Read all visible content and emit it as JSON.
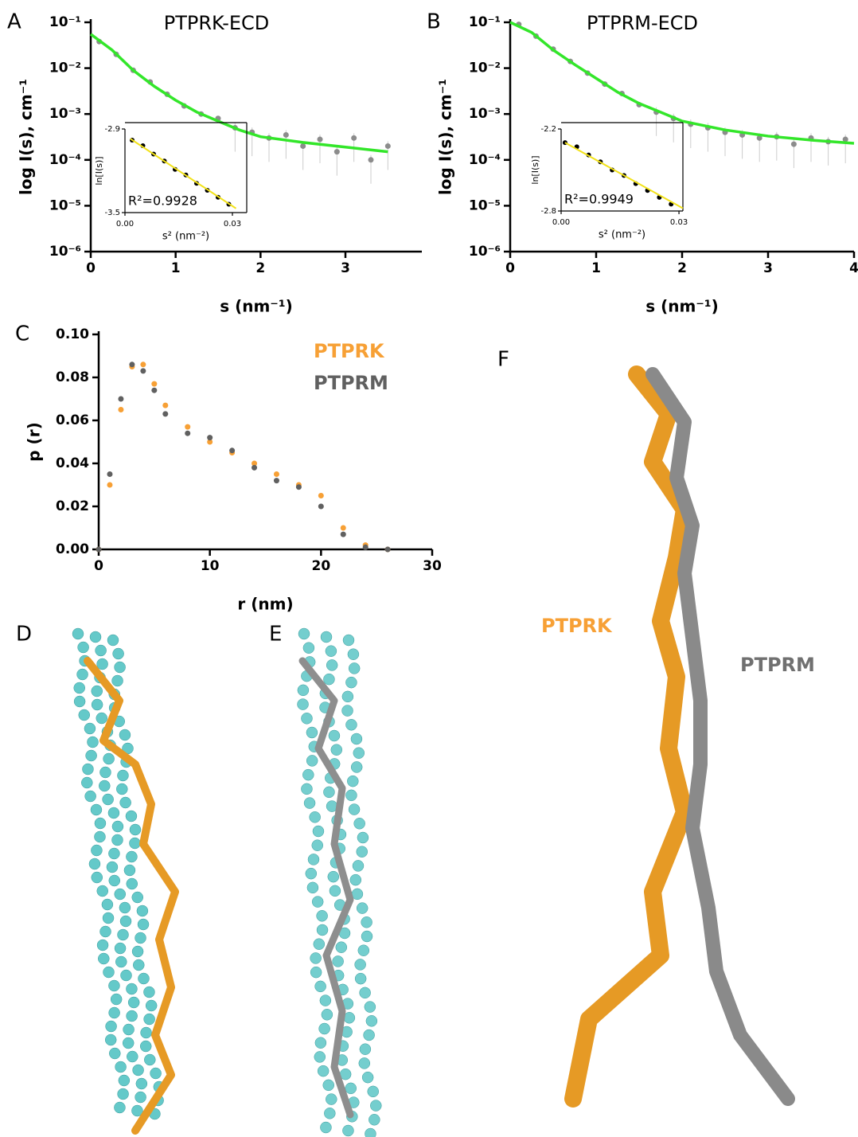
{
  "chart_data": [
    {
      "type": "line",
      "panel": "A",
      "title": "PTPRK-ECD",
      "xlabel": "s (nm⁻¹)",
      "ylabel": "log I(s), cm⁻¹",
      "log_y": true,
      "xlim": [
        0,
        3.9
      ],
      "xticks": [
        0,
        1,
        2,
        3
      ],
      "ylim": [
        1e-06,
        0.1
      ],
      "yticks": [
        {
          "value": 0.1,
          "label": "10⁻¹"
        },
        {
          "value": 0.01,
          "label": "10⁻²"
        },
        {
          "value": 0.001,
          "label": "10⁻³"
        },
        {
          "value": 0.0001,
          "label": "10⁻⁴"
        },
        {
          "value": 1e-05,
          "label": "10⁻⁵"
        },
        {
          "value": 1e-06,
          "label": "10⁻⁶"
        }
      ],
      "series": [
        {
          "mode": "markers",
          "color": "#8c8c8c",
          "x": [
            0.1,
            0.3,
            0.5,
            0.7,
            0.9,
            1.1,
            1.3,
            1.5,
            1.7,
            1.9,
            2.1,
            2.3,
            2.5,
            2.7,
            2.9,
            3.1,
            3.3,
            3.5
          ],
          "values": [
            0.038,
            0.02,
            0.009,
            0.005,
            0.0027,
            0.0015,
            0.001,
            0.0008,
            0.0005,
            0.0004,
            0.0003,
            0.00035,
            0.0002,
            0.00028,
            0.00015,
            0.0003,
            0.0001,
            0.0002
          ]
        },
        {
          "mode": "line",
          "color": "#33e62a",
          "x": [
            0,
            0.25,
            0.5,
            0.75,
            1,
            1.25,
            1.5,
            1.75,
            2,
            2.5,
            3,
            3.5
          ],
          "values": [
            0.055,
            0.025,
            0.009,
            0.004,
            0.002,
            0.0011,
            0.0007,
            0.00045,
            0.00032,
            0.00024,
            0.00019,
            0.00015
          ]
        }
      ],
      "inset": {
        "type": "line",
        "xlabel": "s² (nm⁻²)",
        "ylabel": "ln[I(s)]",
        "annotation": "R²=0.9928",
        "xlim": [
          0,
          0.034
        ],
        "xticks": [
          {
            "value": 0,
            "label": "0.00"
          },
          {
            "value": 0.03,
            "label": "0.03"
          }
        ],
        "ylim": [
          -3.5,
          -2.9
        ],
        "yticks": [
          -2.9,
          -3.5
        ],
        "series": [
          {
            "mode": "markers",
            "color": "#000000",
            "x": [
              0.002,
              0.005,
              0.008,
              0.011,
              0.014,
              0.017,
              0.02,
              0.023,
              0.026,
              0.029
            ],
            "values": [
              -2.98,
              -3.02,
              -3.08,
              -3.13,
              -3.19,
              -3.23,
              -3.29,
              -3.34,
              -3.39,
              -3.44
            ]
          },
          {
            "mode": "line",
            "color": "#f2e21a",
            "x": [
              0.0015,
              0.031
            ],
            "values": [
              -2.97,
              -3.47
            ]
          }
        ]
      }
    },
    {
      "type": "line",
      "panel": "B",
      "title": "PTPRM-ECD",
      "xlabel": "s (nm⁻¹)",
      "ylabel": "log I(s), cm⁻¹",
      "log_y": true,
      "xlim": [
        0,
        4
      ],
      "xticks": [
        0,
        1,
        2,
        3,
        4
      ],
      "ylim": [
        1e-06,
        0.1
      ],
      "yticks": [
        {
          "value": 0.1,
          "label": "10⁻¹"
        },
        {
          "value": 0.01,
          "label": "10⁻²"
        },
        {
          "value": 0.001,
          "label": "10⁻³"
        },
        {
          "value": 0.0001,
          "label": "10⁻⁴"
        },
        {
          "value": 1e-05,
          "label": "10⁻⁵"
        },
        {
          "value": 1e-06,
          "label": "10⁻⁶"
        }
      ],
      "series": [
        {
          "mode": "markers",
          "color": "#8c8c8c",
          "x": [
            0.1,
            0.3,
            0.5,
            0.7,
            0.9,
            1.1,
            1.3,
            1.5,
            1.7,
            1.9,
            2.1,
            2.3,
            2.5,
            2.7,
            2.9,
            3.1,
            3.3,
            3.5,
            3.7,
            3.9
          ],
          "values": [
            0.09,
            0.05,
            0.026,
            0.014,
            0.0078,
            0.0045,
            0.0028,
            0.0016,
            0.0011,
            0.0008,
            0.0006,
            0.0005,
            0.0004,
            0.00035,
            0.0003,
            0.00032,
            0.00022,
            0.0003,
            0.00025,
            0.00028
          ]
        },
        {
          "mode": "line",
          "color": "#33e62a",
          "x": [
            0,
            0.25,
            0.5,
            0.75,
            1,
            1.25,
            1.5,
            1.75,
            2,
            2.5,
            3,
            3.5,
            4
          ],
          "values": [
            0.1,
            0.06,
            0.025,
            0.012,
            0.006,
            0.003,
            0.0017,
            0.0011,
            0.0007,
            0.00045,
            0.00033,
            0.00027,
            0.00023
          ]
        }
      ],
      "inset": {
        "type": "line",
        "xlabel": "s² (nm⁻²)",
        "ylabel": "ln[I(s)]",
        "annotation": "R²=0.9949",
        "xlim": [
          0,
          0.031
        ],
        "xticks": [
          {
            "value": 0,
            "label": "0.00"
          },
          {
            "value": 0.03,
            "label": "0.03"
          }
        ],
        "ylim": [
          -2.8,
          -2.2
        ],
        "yticks": [
          -2.2,
          -2.8
        ],
        "series": [
          {
            "mode": "markers",
            "color": "#000000",
            "x": [
              0.001,
              0.004,
              0.007,
              0.01,
              0.013,
              0.016,
              0.019,
              0.022,
              0.025,
              0.028
            ],
            "values": [
              -2.3,
              -2.33,
              -2.39,
              -2.44,
              -2.5,
              -2.54,
              -2.6,
              -2.65,
              -2.7,
              -2.75
            ]
          },
          {
            "mode": "line",
            "color": "#f2e21a",
            "x": [
              0.001,
              0.031
            ],
            "values": [
              -2.3,
              -2.78
            ]
          }
        ]
      }
    },
    {
      "type": "scatter",
      "panel": "C",
      "xlabel": "r (nm)",
      "ylabel": "p (r)",
      "legend": "upper right",
      "xlim": [
        0,
        30
      ],
      "xticks": [
        0,
        10,
        20,
        30
      ],
      "ylim": [
        0,
        0.1
      ],
      "yticks": [
        {
          "value": 0,
          "label": "0.00"
        },
        {
          "value": 0.02,
          "label": "0.02"
        },
        {
          "value": 0.04,
          "label": "0.04"
        },
        {
          "value": 0.06,
          "label": "0.06"
        },
        {
          "value": 0.08,
          "label": "0.08"
        },
        {
          "value": 0.1,
          "label": "0.10"
        }
      ],
      "series": [
        {
          "name": "PTPRK",
          "color": "#f7a035",
          "x": [
            0,
            1,
            2,
            3,
            4,
            5,
            6,
            8,
            10,
            12,
            14,
            16,
            18,
            20,
            22,
            24,
            26
          ],
          "values": [
            0,
            0.03,
            0.065,
            0.085,
            0.086,
            0.077,
            0.067,
            0.057,
            0.05,
            0.045,
            0.04,
            0.035,
            0.03,
            0.025,
            0.01,
            0.002,
            0
          ]
        },
        {
          "name": "PTPRM",
          "color": "#606060",
          "x": [
            0,
            1,
            2,
            3,
            4,
            5,
            6,
            8,
            10,
            12,
            14,
            16,
            18,
            20,
            22,
            24,
            26
          ],
          "values": [
            0,
            0.035,
            0.07,
            0.086,
            0.083,
            0.074,
            0.063,
            0.054,
            0.052,
            0.046,
            0.038,
            0.032,
            0.029,
            0.02,
            0.007,
            0.001,
            0
          ]
        }
      ]
    }
  ],
  "structures": {
    "D": "D",
    "E": "E",
    "F": "F",
    "f_labels": [
      "PTPRK",
      "PTPRM"
    ]
  }
}
